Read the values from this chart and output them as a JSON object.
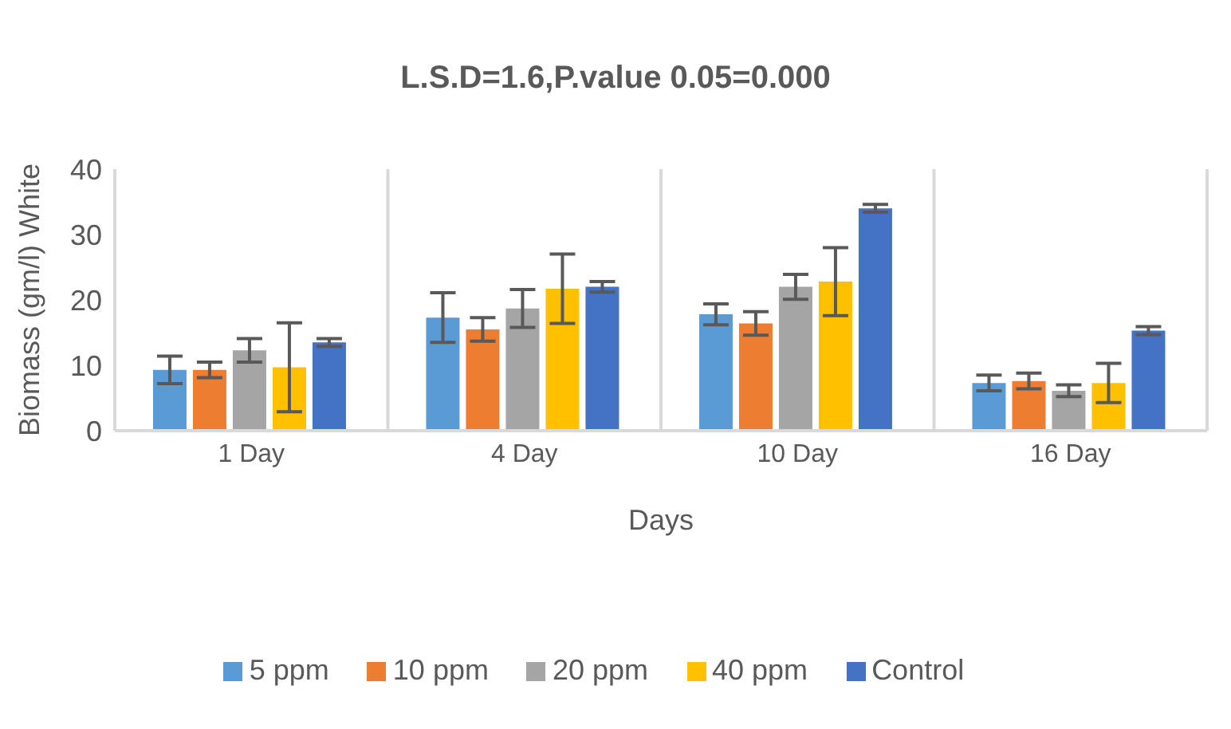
{
  "chart_data": {
    "type": "bar",
    "title": "L.S.D=1.6,P.value 0.05=0.000",
    "xlabel": "Days",
    "ylabel": "Biomass (gm/l) White",
    "categories": [
      "1 Day",
      "4 Day",
      "10 Day",
      "16 Day"
    ],
    "series": [
      {
        "name": "5 ppm",
        "color": "#5b9bd5",
        "values": [
          9.3,
          17.3,
          17.8,
          7.3
        ],
        "errors": [
          2.1,
          3.8,
          1.6,
          1.2
        ]
      },
      {
        "name": "10 ppm",
        "color": "#ed7d31",
        "values": [
          9.3,
          15.5,
          16.4,
          7.6
        ],
        "errors": [
          1.2,
          1.8,
          1.8,
          1.2
        ]
      },
      {
        "name": "20 ppm",
        "color": "#a5a5a5",
        "values": [
          12.3,
          18.7,
          22.0,
          6.1
        ],
        "errors": [
          1.8,
          2.9,
          1.9,
          0.9
        ]
      },
      {
        "name": "40 ppm",
        "color": "#ffc000",
        "values": [
          9.7,
          21.7,
          22.8,
          7.3
        ],
        "errors": [
          6.8,
          5.3,
          5.2,
          3.0
        ]
      },
      {
        "name": "Control",
        "color": "#4472c4",
        "values": [
          13.5,
          22.0,
          34.0,
          15.3
        ],
        "errors": [
          0.6,
          0.8,
          0.6,
          0.6
        ]
      }
    ],
    "ylim": [
      0,
      40
    ],
    "yticks": [
      0,
      10,
      20,
      30,
      40
    ],
    "grid": "x",
    "legend": "bottom"
  }
}
